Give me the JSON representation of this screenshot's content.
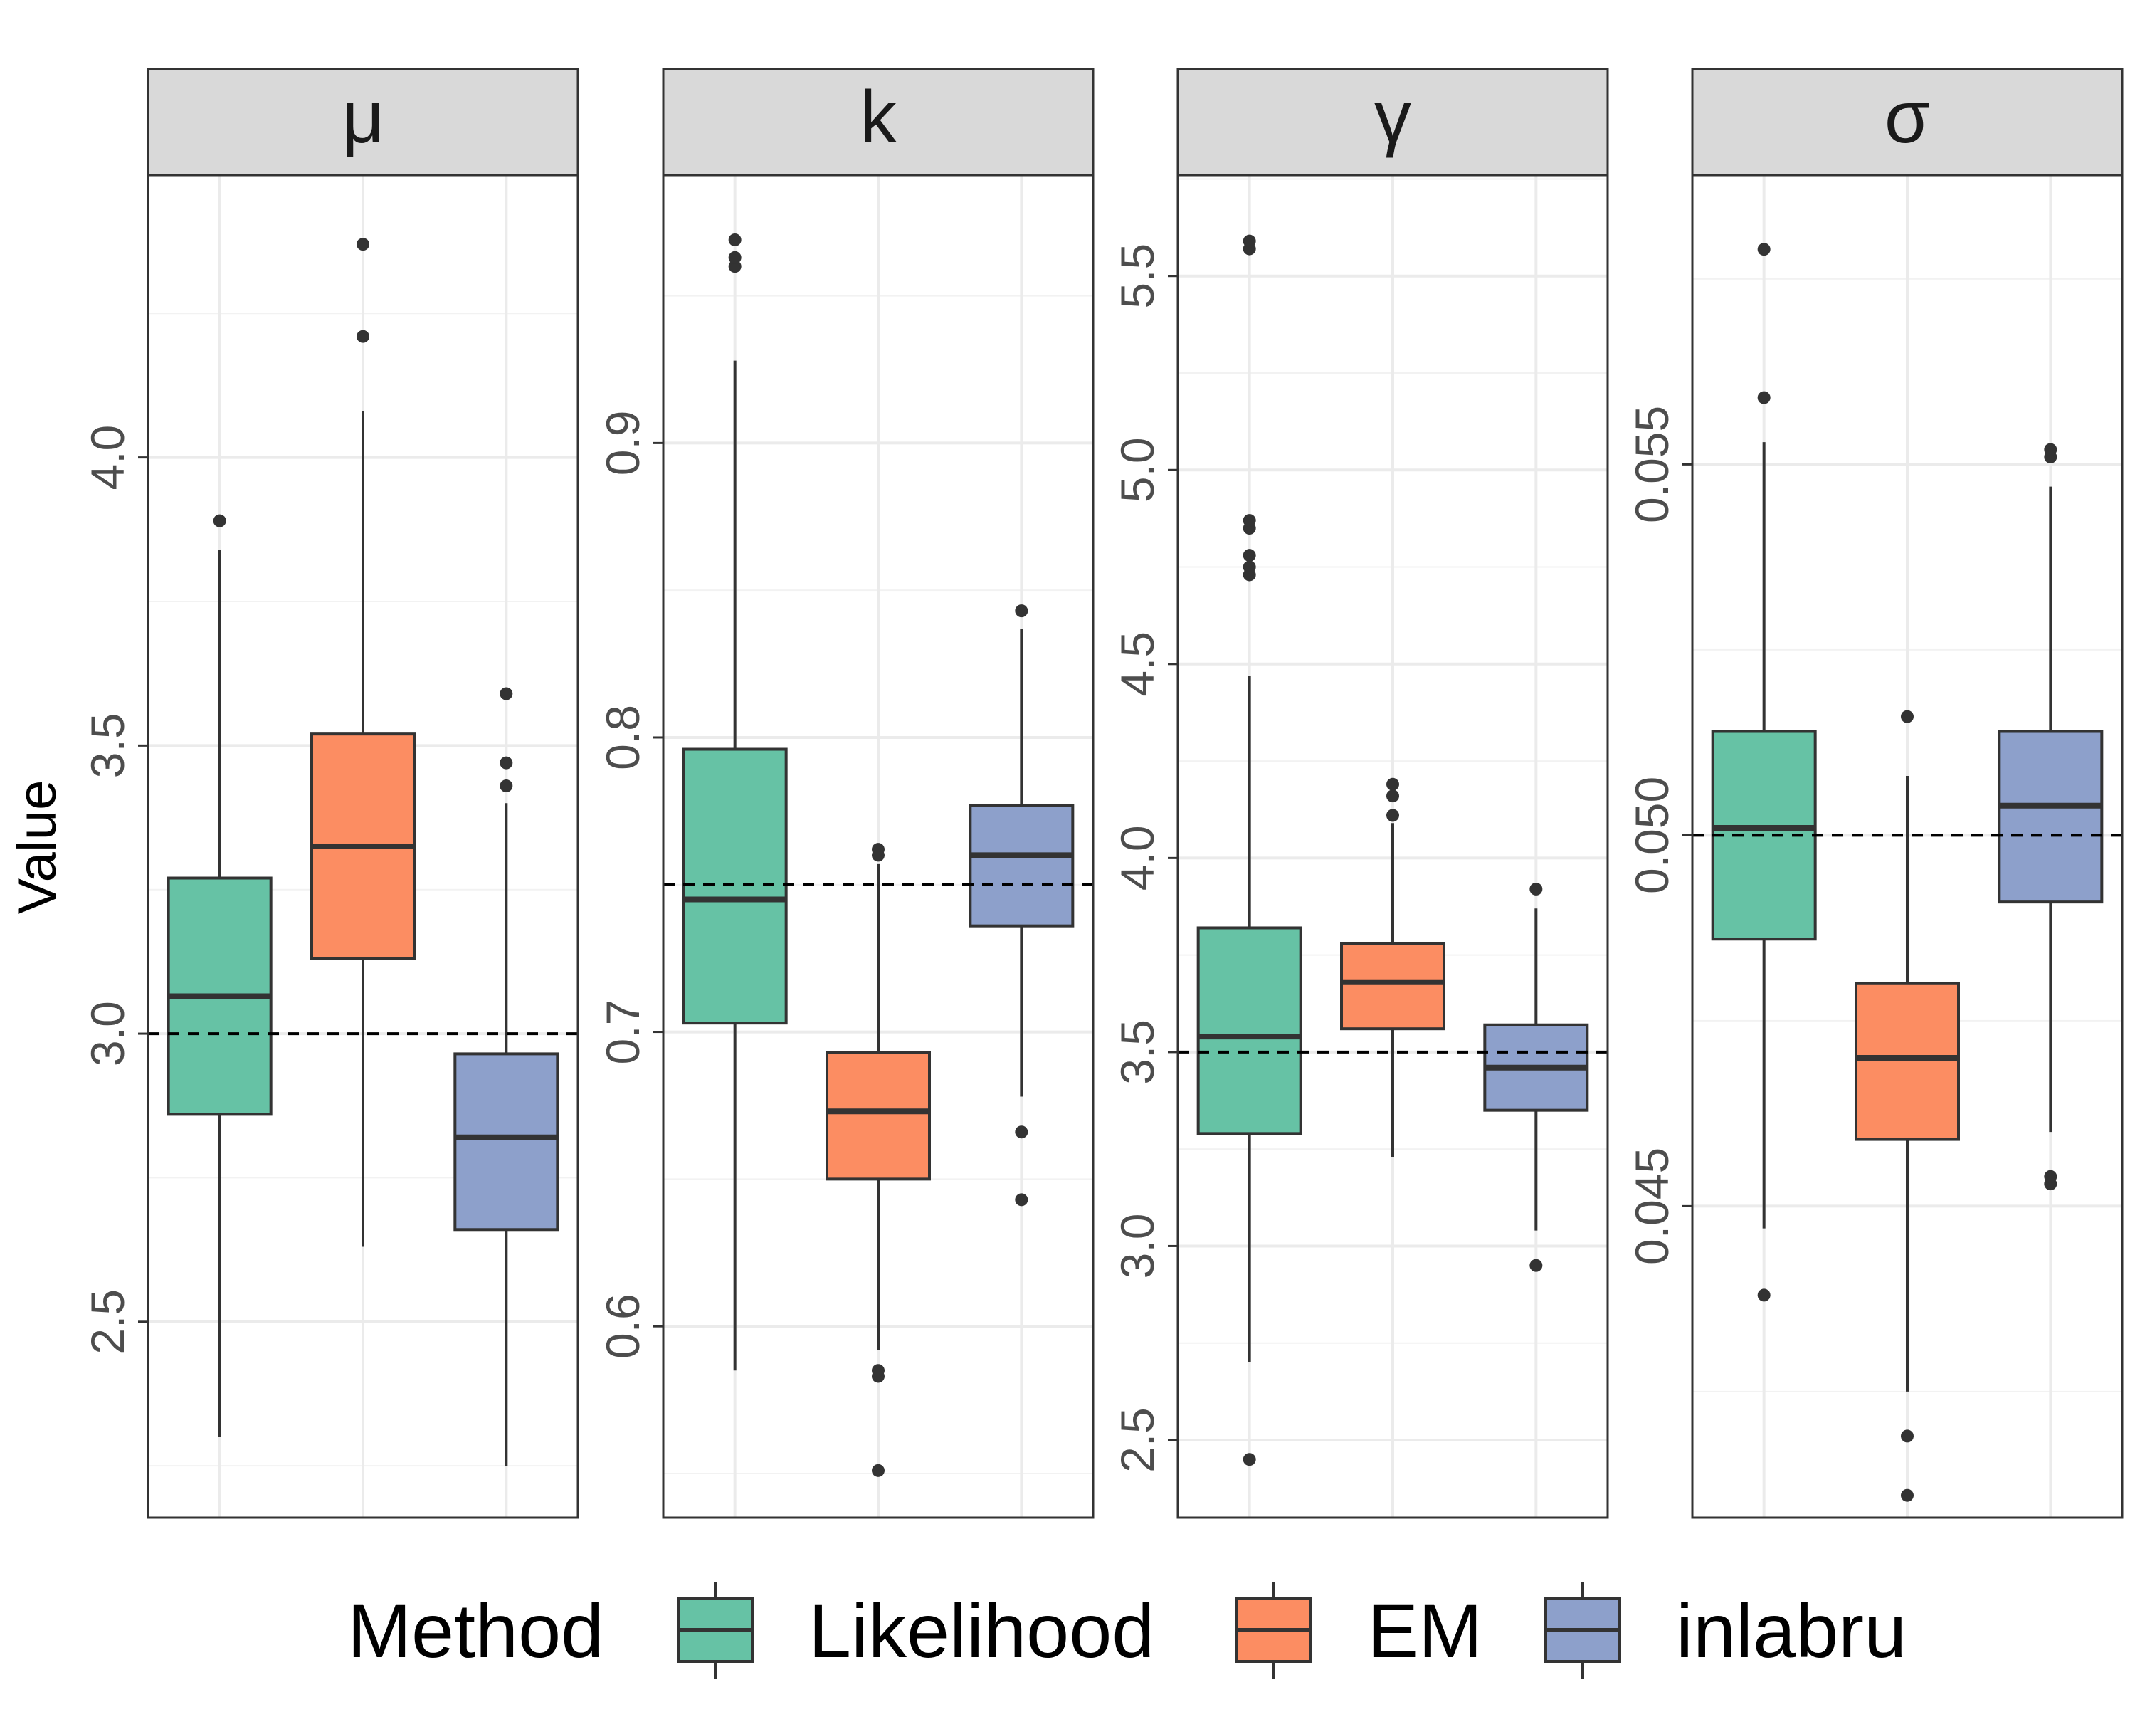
{
  "chart_data": {
    "type": "box",
    "ylabel": "Value",
    "legend": {
      "title": "Method",
      "position": "bottom",
      "entries": [
        "Likelihood",
        "EM",
        "inlabru"
      ]
    },
    "colors": {
      "Likelihood": "#66c2a5",
      "EM": "#fc8d62",
      "inlabru": "#8da0cb"
    },
    "grid": true,
    "true_value_line": "dashed",
    "panels": [
      {
        "name": "μ",
        "ylim": [
          2.16,
          4.49
        ],
        "yticks": [
          2.5,
          3.0,
          3.5,
          4.0
        ],
        "tick_labels": [
          "2.5",
          "3.0",
          "3.5",
          "4.0"
        ],
        "true_value": 3.0,
        "boxes": [
          {
            "method": "Likelihood",
            "whisker_low": 2.3,
            "q1": 2.86,
            "median": 3.065,
            "q3": 3.27,
            "whisker_high": 3.84,
            "outliers": [
              3.89
            ]
          },
          {
            "method": "EM",
            "whisker_low": 2.63,
            "q1": 3.13,
            "median": 3.325,
            "q3": 3.52,
            "whisker_high": 4.08,
            "outliers": [
              4.21,
              4.37
            ]
          },
          {
            "method": "inlabru",
            "whisker_low": 2.25,
            "q1": 2.66,
            "median": 2.82,
            "q3": 2.965,
            "whisker_high": 3.4,
            "outliers": [
              3.43,
              3.47,
              3.59
            ]
          }
        ]
      },
      {
        "name": "k",
        "ylim": [
          0.535,
          0.991
        ],
        "yticks": [
          0.6,
          0.7,
          0.8,
          0.9
        ],
        "tick_labels": [
          "0.6",
          "0.7",
          "0.8",
          "0.9"
        ],
        "true_value": 0.75,
        "boxes": [
          {
            "method": "Likelihood",
            "whisker_low": 0.585,
            "q1": 0.703,
            "median": 0.745,
            "q3": 0.796,
            "whisker_high": 0.928,
            "outliers": [
              0.96,
              0.963,
              0.969
            ]
          },
          {
            "method": "EM",
            "whisker_low": 0.592,
            "q1": 0.65,
            "median": 0.673,
            "q3": 0.693,
            "whisker_high": 0.757,
            "outliers": [
              0.76,
              0.762,
              0.583,
              0.585,
              0.551
            ]
          },
          {
            "method": "inlabru",
            "whisker_low": 0.678,
            "q1": 0.736,
            "median": 0.76,
            "q3": 0.777,
            "whisker_high": 0.837,
            "outliers": [
              0.843,
              0.666,
              0.643
            ]
          }
        ]
      },
      {
        "name": "γ",
        "ylim": [
          2.3,
          5.76
        ],
        "yticks": [
          2.5,
          3.0,
          3.5,
          4.0,
          4.5,
          5.0,
          5.5
        ],
        "tick_labels": [
          "2.5",
          "3.0",
          "3.5",
          "4.0",
          "4.5",
          "5.0",
          "5.5"
        ],
        "true_value": 3.5,
        "boxes": [
          {
            "method": "Likelihood",
            "whisker_low": 2.7,
            "q1": 3.29,
            "median": 3.54,
            "q3": 3.82,
            "whisker_high": 4.47,
            "outliers": [
              4.73,
              4.75,
              4.78,
              4.85,
              4.87,
              5.57,
              5.59,
              2.45
            ]
          },
          {
            "method": "EM",
            "whisker_low": 3.23,
            "q1": 3.56,
            "median": 3.68,
            "q3": 3.78,
            "whisker_high": 4.09,
            "outliers": [
              4.11,
              4.16,
              4.19
            ]
          },
          {
            "method": "inlabru",
            "whisker_low": 3.04,
            "q1": 3.35,
            "median": 3.46,
            "q3": 3.57,
            "whisker_high": 3.87,
            "outliers": [
              3.92,
              2.95
            ]
          }
        ]
      },
      {
        "name": "σ",
        "ylim": [
          0.0408,
          0.0589
        ],
        "yticks": [
          0.045,
          0.05,
          0.055
        ],
        "tick_labels": [
          "0.045",
          "0.050",
          "0.055"
        ],
        "true_value": 0.05,
        "boxes": [
          {
            "method": "Likelihood",
            "whisker_low": 0.0447,
            "q1": 0.0486,
            "median": 0.0501,
            "q3": 0.0514,
            "whisker_high": 0.0553,
            "outliers": [
              0.0559,
              0.0579,
              0.0438
            ]
          },
          {
            "method": "EM",
            "whisker_low": 0.0425,
            "q1": 0.0459,
            "median": 0.047,
            "q3": 0.048,
            "whisker_high": 0.0508,
            "outliers": [
              0.0516,
              0.0419,
              0.0411
            ]
          },
          {
            "method": "inlabru",
            "whisker_low": 0.046,
            "q1": 0.0491,
            "median": 0.0504,
            "q3": 0.0514,
            "whisker_high": 0.0547,
            "outliers": [
              0.0551,
              0.0552,
              0.0453,
              0.0454
            ]
          }
        ]
      }
    ]
  }
}
